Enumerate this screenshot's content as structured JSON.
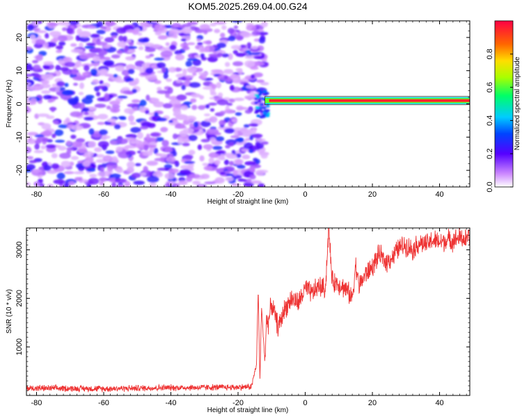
{
  "title": "KOM5.2025.269.04.00.G24",
  "chart_data": [
    {
      "type": "heatmap",
      "title": "KOM5.2025.269.04.00.G24",
      "xlabel": "Height of straight line (km)",
      "ylabel": "Frequency (Hz)",
      "xlim": [
        -83,
        49
      ],
      "ylim": [
        -25,
        25
      ],
      "x_ticks": [
        "-80",
        "-60",
        "-40",
        "-20",
        "0",
        "20",
        "40"
      ],
      "y_ticks": [
        "-20",
        "-10",
        "0",
        "10",
        "20"
      ],
      "colorbar": {
        "label": "Normalized spectral amplitude",
        "range": [
          0,
          1
        ],
        "ticks": [
          "0.0",
          "0.2",
          "0.4",
          "0.6",
          "0.8"
        ]
      },
      "noise_region_km": [
        -83,
        -12
      ],
      "signal_line": {
        "x_start_km": -12,
        "x_end_km": 49,
        "frequency_hz": 1,
        "amplitude": 0.95
      },
      "noise_amplitude_range": [
        0.05,
        0.3
      ],
      "grid": false
    },
    {
      "type": "line",
      "xlabel": "Height of straight line (km)",
      "ylabel": "SNR (10 * v/v)",
      "xlim": [
        -83,
        49
      ],
      "ylim": [
        0,
        3450
      ],
      "x_ticks": [
        "-80",
        "-60",
        "-40",
        "-20",
        "0",
        "20",
        "40"
      ],
      "y_ticks": [
        "1000",
        "2000",
        "3000"
      ],
      "color": "#ee3333",
      "x": [
        -83,
        -60,
        -40,
        -20,
        -16,
        -14.5,
        -14,
        -13.5,
        -13,
        -12,
        -11.5,
        -11,
        -10,
        -8,
        -6,
        -4,
        -2,
        0,
        2,
        4,
        6,
        7,
        8,
        10,
        12,
        14,
        15,
        16,
        18,
        20,
        22,
        24,
        26,
        28,
        30,
        32,
        34,
        36,
        38,
        40,
        42,
        44,
        46,
        48,
        49
      ],
      "y": [
        150,
        140,
        160,
        170,
        180,
        650,
        2200,
        300,
        1800,
        700,
        1600,
        1500,
        1900,
        1400,
        1800,
        2000,
        1900,
        2200,
        2100,
        2250,
        2200,
        3450,
        2350,
        2300,
        2200,
        2000,
        2700,
        2250,
        2500,
        2650,
        2900,
        2750,
        2850,
        3050,
        3100,
        3000,
        3150,
        3100,
        3200,
        3150,
        3200,
        3200,
        3250,
        3200,
        3300
      ],
      "series_noise": [
        {
          "x_start": -83,
          "x_end": -12,
          "jitter": 80
        },
        {
          "x_start": -12,
          "x_end": 49,
          "jitter": 260
        }
      ],
      "grid": false
    }
  ]
}
